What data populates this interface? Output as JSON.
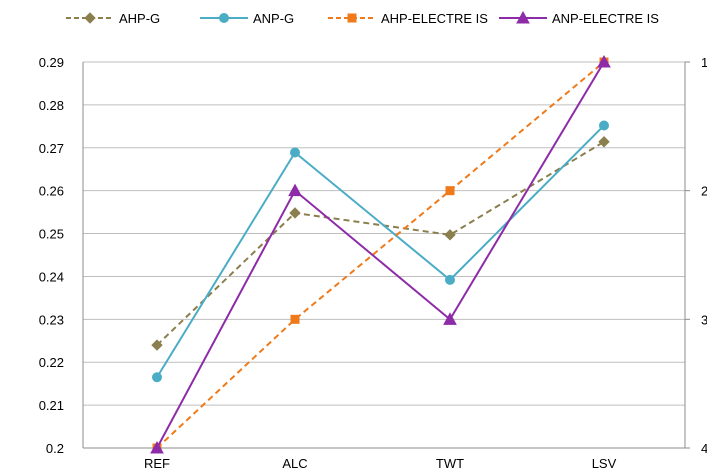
{
  "chart_data": {
    "type": "line",
    "categories": [
      "REF",
      "ALC",
      "TWT",
      "LSV"
    ],
    "series": [
      {
        "name": "AHP-G",
        "axis": "left",
        "values": [
          0.224,
          0.2548,
          0.2497,
          0.2714
        ],
        "color": "#8B7F4E",
        "dash": "dashed",
        "marker": "diamond"
      },
      {
        "name": "ANP-G",
        "axis": "left",
        "values": [
          0.2165,
          0.2689,
          0.2392,
          0.2752
        ],
        "color": "#4BACC6",
        "dash": "solid",
        "marker": "circle"
      },
      {
        "name": "AHP-ELECTRE IS",
        "axis": "left",
        "values": [
          0.2,
          0.23,
          0.26,
          0.29
        ],
        "color": "#F07A19",
        "dash": "dashed",
        "marker": "square"
      },
      {
        "name": "ANP-ELECTRE IS",
        "axis": "right",
        "values": [
          4,
          2,
          3,
          1
        ],
        "color": "#8E2BA8",
        "dash": "solid",
        "marker": "triangle"
      }
    ],
    "y_left": {
      "ylim": [
        0.2,
        0.29
      ],
      "ticks": [
        "0.2",
        "0.21",
        "0.22",
        "0.23",
        "0.24",
        "0.25",
        "0.26",
        "0.27",
        "0.28",
        "0.29"
      ]
    },
    "y_right": {
      "ylim": [
        4,
        1
      ],
      "ticks": [
        "1",
        "2",
        "3",
        "4"
      ]
    },
    "grid": true,
    "legend": "top"
  }
}
